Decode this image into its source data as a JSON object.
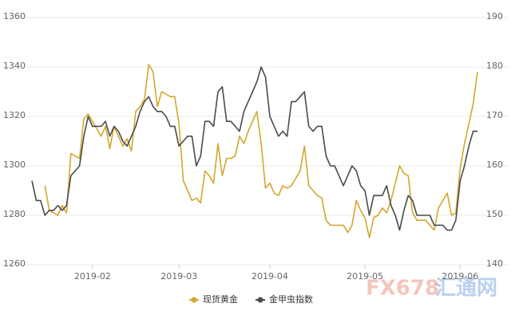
{
  "chart_data": {
    "type": "line",
    "categories": [
      null,
      null,
      null,
      null,
      null,
      null,
      null,
      null,
      null,
      null,
      null,
      null,
      null,
      null,
      "2019-02",
      null,
      null,
      null,
      null,
      null,
      null,
      null,
      null,
      null,
      null,
      null,
      null,
      null,
      null,
      null,
      null,
      null,
      null,
      null,
      "2019-03",
      null,
      null,
      null,
      null,
      null,
      null,
      null,
      null,
      null,
      null,
      null,
      null,
      null,
      null,
      null,
      null,
      null,
      null,
      null,
      null,
      "2019-04",
      null,
      null,
      null,
      null,
      null,
      null,
      null,
      null,
      null,
      null,
      null,
      null,
      null,
      null,
      null,
      null,
      null,
      null,
      null,
      null,
      null,
      "2019-05",
      null,
      null,
      null,
      null,
      null,
      null,
      null,
      null,
      null,
      null,
      null,
      null,
      null,
      null,
      null,
      null,
      null,
      null,
      null,
      null,
      null,
      "2019-06",
      null,
      null,
      null,
      null
    ],
    "series": [
      {
        "name": "现货黄金",
        "color": "#d4a72c",
        "values": [
          null,
          null,
          null,
          1292,
          1282,
          1281,
          1280,
          1284,
          1281,
          1305,
          1304,
          1303,
          1319,
          1321,
          1318,
          1315,
          1312,
          1316,
          1307,
          1316,
          1312,
          1308,
          1311,
          1306,
          1322,
          1324,
          1327,
          1341,
          1338,
          1324,
          1330,
          1329,
          1328,
          1328,
          1317,
          1294,
          1290,
          1286,
          1287,
          1285,
          1298,
          1296,
          1293,
          1309,
          1296,
          1303,
          1303,
          1304,
          1312,
          1309,
          1314,
          1318,
          1322,
          1309,
          1291,
          1293,
          1289,
          1288,
          1292,
          1291,
          1292,
          1295,
          1298,
          1308,
          1292,
          1290,
          1288,
          1287,
          1278,
          1276,
          1276,
          1276,
          1276,
          1273,
          1276,
          1286,
          1282,
          1279,
          1271,
          1279,
          1280,
          1283,
          1281,
          1286,
          1293,
          1300,
          1297,
          1296,
          1281,
          1278,
          1278,
          1278,
          1276,
          1274,
          1283,
          1286,
          1289,
          1280,
          1281,
          1299,
          1309,
          1317,
          1325,
          1338
        ]
      },
      {
        "name": "金甲虫指数",
        "color": "#4a4a4a",
        "axis": "y2",
        "values": [
          157,
          153,
          153,
          150,
          151,
          151,
          152,
          151,
          152,
          158,
          159,
          160,
          166,
          170,
          168,
          168,
          168,
          169,
          166,
          168,
          167,
          165,
          164,
          166,
          168,
          171,
          173,
          174,
          172,
          171,
          171,
          170,
          168,
          168,
          164,
          165,
          166,
          166,
          160,
          162,
          169,
          169,
          168,
          175,
          176,
          169,
          169,
          168,
          167,
          171,
          173,
          175,
          177,
          180,
          178,
          170,
          168,
          166,
          167,
          166,
          173,
          173,
          174,
          175,
          168,
          167,
          168,
          168,
          162,
          160,
          160,
          158,
          156,
          158,
          160,
          159,
          156,
          155,
          150,
          154,
          154,
          154,
          156,
          152,
          150,
          147,
          151,
          154,
          153,
          150,
          150,
          150,
          150,
          148,
          148,
          148,
          147,
          147,
          149,
          157,
          160,
          164,
          167,
          167
        ]
      }
    ],
    "ylim": [
      1260,
      1360
    ],
    "yticks": [
      1260,
      1280,
      1300,
      1320,
      1340,
      1360
    ],
    "y2lim": [
      140,
      190
    ],
    "y2ticks": [
      140,
      150,
      160,
      170,
      180,
      190
    ],
    "grid": true,
    "watermark": [
      "FX678",
      "汇通网"
    ]
  }
}
